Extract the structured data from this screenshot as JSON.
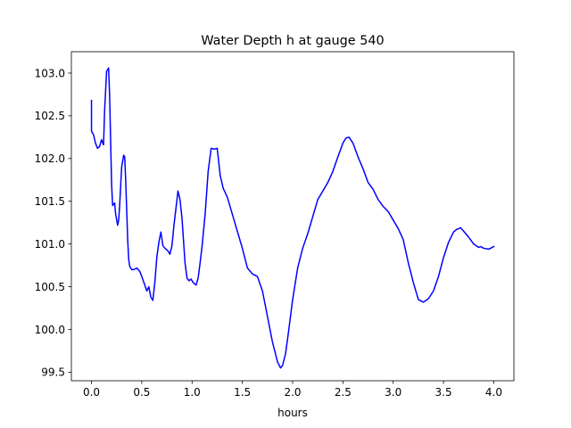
{
  "chart_data": {
    "type": "line",
    "title": "Water Depth h at gauge 540",
    "xlabel": "hours",
    "ylabel": "",
    "xlim": [
      -0.2,
      4.2
    ],
    "ylim": [
      99.4,
      103.25
    ],
    "grid": false,
    "x_ticks": [
      0.0,
      0.5,
      1.0,
      1.5,
      2.0,
      2.5,
      3.0,
      3.5,
      4.0
    ],
    "x_tick_labels": [
      "0.0",
      "0.5",
      "1.0",
      "1.5",
      "2.0",
      "2.5",
      "3.0",
      "3.5",
      "4.0"
    ],
    "y_ticks": [
      99.5,
      100.0,
      100.5,
      101.0,
      101.5,
      102.0,
      102.5,
      103.0
    ],
    "y_tick_labels": [
      "99.5",
      "100.0",
      "100.5",
      "101.0",
      "101.5",
      "102.0",
      "102.5",
      "103.0"
    ],
    "series": [
      {
        "color": "#0000ff",
        "x": [
          0.0,
          0.0,
          0.02,
          0.04,
          0.06,
          0.08,
          0.1,
          0.12,
          0.13,
          0.15,
          0.17,
          0.18,
          0.2,
          0.21,
          0.23,
          0.24,
          0.26,
          0.27,
          0.28,
          0.3,
          0.32,
          0.33,
          0.34,
          0.36,
          0.37,
          0.38,
          0.4,
          0.42,
          0.45,
          0.48,
          0.5,
          0.53,
          0.55,
          0.57,
          0.59,
          0.61,
          0.63,
          0.65,
          0.67,
          0.69,
          0.71,
          0.73,
          0.76,
          0.78,
          0.8,
          0.82,
          0.84,
          0.86,
          0.88,
          0.9,
          0.93,
          0.95,
          0.97,
          0.99,
          1.01,
          1.04,
          1.06,
          1.08,
          1.1,
          1.13,
          1.16,
          1.19,
          1.22,
          1.25,
          1.28,
          1.31,
          1.35,
          1.4,
          1.45,
          1.5,
          1.55,
          1.6,
          1.65,
          1.7,
          1.75,
          1.8,
          1.85,
          1.88,
          1.9,
          1.93,
          1.96,
          2.0,
          2.05,
          2.1,
          2.15,
          2.2,
          2.25,
          2.3,
          2.35,
          2.4,
          2.45,
          2.5,
          2.53,
          2.56,
          2.6,
          2.65,
          2.7,
          2.75,
          2.8,
          2.85,
          2.9,
          2.95,
          3.0,
          3.05,
          3.1,
          3.15,
          3.2,
          3.25,
          3.3,
          3.35,
          3.4,
          3.45,
          3.5,
          3.55,
          3.6,
          3.63,
          3.65,
          3.67,
          3.7,
          3.75,
          3.8,
          3.85,
          3.87,
          3.9,
          3.95,
          4.0
        ],
        "y": [
          102.68,
          102.32,
          102.28,
          102.18,
          102.12,
          102.14,
          102.22,
          102.16,
          102.55,
          103.02,
          103.06,
          102.75,
          101.7,
          101.45,
          101.48,
          101.35,
          101.22,
          101.28,
          101.45,
          101.9,
          102.04,
          102.02,
          101.75,
          101.05,
          100.82,
          100.74,
          100.7,
          100.7,
          100.72,
          100.68,
          100.62,
          100.52,
          100.45,
          100.5,
          100.38,
          100.34,
          100.55,
          100.85,
          101.02,
          101.14,
          100.98,
          100.95,
          100.92,
          100.88,
          100.98,
          101.22,
          101.42,
          101.62,
          101.52,
          101.3,
          100.78,
          100.6,
          100.57,
          100.59,
          100.55,
          100.52,
          100.6,
          100.78,
          100.98,
          101.35,
          101.85,
          102.12,
          102.11,
          102.12,
          101.8,
          101.65,
          101.55,
          101.35,
          101.15,
          100.95,
          100.72,
          100.65,
          100.62,
          100.45,
          100.15,
          99.85,
          99.62,
          99.55,
          99.58,
          99.72,
          99.98,
          100.35,
          100.72,
          100.95,
          101.12,
          101.32,
          101.52,
          101.62,
          101.72,
          101.85,
          102.02,
          102.18,
          102.24,
          102.25,
          102.18,
          102.02,
          101.88,
          101.72,
          101.64,
          101.52,
          101.44,
          101.38,
          101.28,
          101.18,
          101.05,
          100.78,
          100.55,
          100.35,
          100.32,
          100.36,
          100.45,
          100.62,
          100.84,
          101.02,
          101.14,
          101.17,
          101.18,
          101.19,
          101.15,
          101.08,
          101.0,
          100.96,
          100.97,
          100.95,
          100.94,
          100.97
        ]
      }
    ]
  }
}
